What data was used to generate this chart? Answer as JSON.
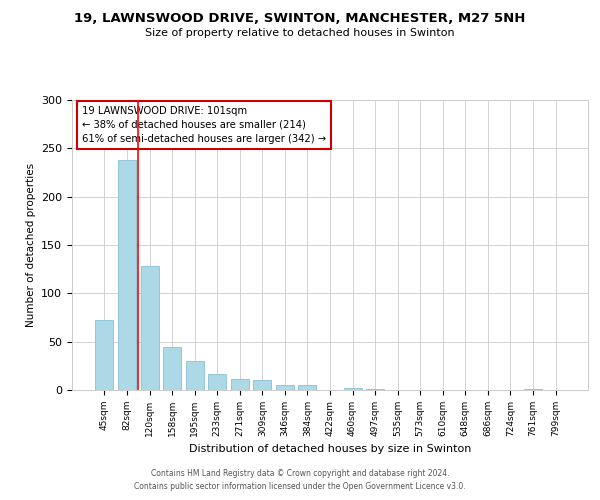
{
  "title1": "19, LAWNSWOOD DRIVE, SWINTON, MANCHESTER, M27 5NH",
  "title2": "Size of property relative to detached houses in Swinton",
  "xlabel": "Distribution of detached houses by size in Swinton",
  "ylabel": "Number of detached properties",
  "bin_labels": [
    "45sqm",
    "82sqm",
    "120sqm",
    "158sqm",
    "195sqm",
    "233sqm",
    "271sqm",
    "309sqm",
    "346sqm",
    "384sqm",
    "422sqm",
    "460sqm",
    "497sqm",
    "535sqm",
    "573sqm",
    "610sqm",
    "648sqm",
    "686sqm",
    "724sqm",
    "761sqm",
    "799sqm"
  ],
  "bar_values": [
    72,
    238,
    128,
    44,
    30,
    17,
    11,
    10,
    5,
    5,
    0,
    2,
    1,
    0,
    0,
    0,
    0,
    0,
    0,
    1,
    0
  ],
  "bar_color": "#add8e6",
  "bar_edge_color": "#7ab8d0",
  "red_line_x": 1.5,
  "annotation_title": "19 LAWNSWOOD DRIVE: 101sqm",
  "annotation_line1": "← 38% of detached houses are smaller (214)",
  "annotation_line2": "61% of semi-detached houses are larger (342) →",
  "annotation_box_color": "#ffffff",
  "annotation_box_edge_color": "#cc0000",
  "ylim": [
    0,
    300
  ],
  "yticks": [
    0,
    50,
    100,
    150,
    200,
    250,
    300
  ],
  "footer1": "Contains HM Land Registry data © Crown copyright and database right 2024.",
  "footer2": "Contains public sector information licensed under the Open Government Licence v3.0."
}
